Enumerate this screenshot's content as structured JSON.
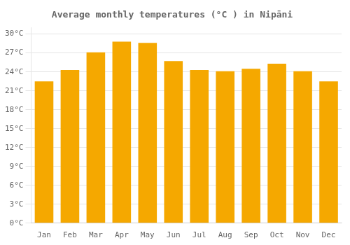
{
  "chart_data": {
    "type": "bar",
    "title": "Average monthly temperatures (°C ) in Nipāni",
    "categories": [
      "Jan",
      "Feb",
      "Mar",
      "Apr",
      "May",
      "Jun",
      "Jul",
      "Aug",
      "Sep",
      "Oct",
      "Nov",
      "Dec"
    ],
    "values": [
      22.5,
      24.3,
      27.1,
      28.8,
      28.6,
      25.7,
      24.3,
      24.1,
      24.5,
      25.3,
      24.1,
      22.5
    ],
    "color": "#F5A800",
    "ylim": [
      0,
      31
    ],
    "yticks": [
      {
        "value": 0,
        "label": "0°C"
      },
      {
        "value": 3,
        "label": "3°C"
      },
      {
        "value": 6,
        "label": "6°C"
      },
      {
        "value": 9,
        "label": "9°C"
      },
      {
        "value": 12,
        "label": "12°C"
      },
      {
        "value": 15,
        "label": "15°C"
      },
      {
        "value": 18,
        "label": "18°C"
      },
      {
        "value": 21,
        "label": "21°C"
      },
      {
        "value": 24,
        "label": "24°C"
      },
      {
        "value": 27,
        "label": "27°C"
      },
      {
        "value": 30,
        "label": "30°C"
      }
    ],
    "grid": true
  }
}
